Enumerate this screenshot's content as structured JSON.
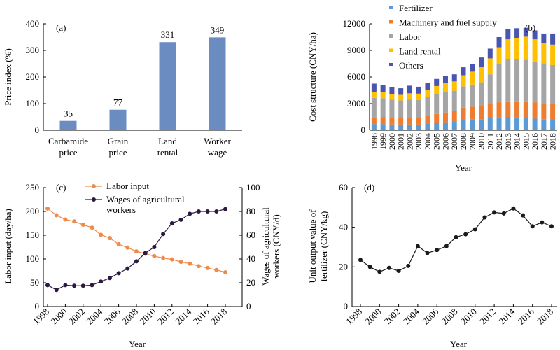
{
  "colors": {
    "bar_a": "#6a8cc0",
    "fertilizer": "#5b9bd5",
    "machinery": "#ed7d31",
    "labor": "#a5a5a5",
    "land": "#ffc000",
    "others": "#4a55b0",
    "labor_input": "#f08a4b",
    "wages": "#2b1a3d",
    "unit_output": "#1a1a1a"
  },
  "chart_data": [
    {
      "type": "bar",
      "panel_label": "(a)",
      "ylabel": "Price index (%)",
      "ylim": [
        0,
        400
      ],
      "yticks": [
        0,
        100,
        200,
        300,
        400
      ],
      "categories": [
        [
          "Carbamide",
          "price"
        ],
        [
          "Grain",
          "price"
        ],
        [
          "Land",
          "rental"
        ],
        [
          "Worker",
          "wage"
        ]
      ],
      "values": [
        35,
        77,
        331,
        349
      ],
      "data_labels": [
        "35",
        "77",
        "331",
        "349"
      ]
    },
    {
      "type": "bar",
      "stacked": true,
      "panel_label": "(b)",
      "ylabel": "Cost structure (CNY/ha)",
      "xlabel": "Year",
      "ylim": [
        0,
        12000
      ],
      "yticks": [
        0,
        3000,
        6000,
        9000,
        12000
      ],
      "categories": [
        "1998",
        "1999",
        "2000",
        "2001",
        "2002",
        "2003",
        "2004",
        "2005",
        "2006",
        "2007",
        "2008",
        "2009",
        "2010",
        "2011",
        "2012",
        "2013",
        "2014",
        "2015",
        "2016",
        "2017",
        "2018"
      ],
      "legend_position": "top-left",
      "series": [
        {
          "name": "Fertilizer",
          "values": [
            700,
            700,
            650,
            640,
            650,
            640,
            780,
            850,
            900,
            950,
            1150,
            1200,
            1200,
            1400,
            1450,
            1500,
            1450,
            1400,
            1300,
            1200,
            1150
          ]
        },
        {
          "name": "Machinery and fuel supply",
          "values": [
            750,
            760,
            740,
            730,
            760,
            780,
            870,
            980,
            1100,
            1200,
            1400,
            1450,
            1500,
            1600,
            1700,
            1750,
            1800,
            1850,
            1850,
            1850,
            1900
          ]
        },
        {
          "name": "Labor",
          "values": [
            2200,
            2150,
            2050,
            1980,
            2050,
            2000,
            2100,
            2200,
            2300,
            2300,
            2400,
            2500,
            2700,
            3300,
            4300,
            4800,
            4800,
            4700,
            4600,
            4500,
            4300
          ]
        },
        {
          "name": "Land rental",
          "values": [
            650,
            660,
            640,
            640,
            700,
            700,
            800,
            950,
            1000,
            1050,
            1250,
            1450,
            1700,
            1800,
            1900,
            2200,
            2300,
            2600,
            2500,
            2300,
            2300
          ]
        },
        {
          "name": "Others",
          "values": [
            950,
            830,
            760,
            740,
            860,
            780,
            800,
            800,
            800,
            800,
            900,
            900,
            1100,
            1100,
            1150,
            1150,
            1150,
            1000,
            1000,
            1050,
            1250
          ]
        }
      ]
    },
    {
      "type": "line",
      "panel_label": "(c)",
      "xlabel": "Year",
      "ylabel_left": "Labor input (day/ha)",
      "ylabel_right": [
        "Wages of agricultural",
        "workers (CNY/d)"
      ],
      "ylim_left": [
        0,
        250
      ],
      "ylim_right": [
        0,
        100
      ],
      "yticks_left": [
        0,
        50,
        100,
        150,
        200,
        250
      ],
      "yticks_right": [
        0,
        20,
        40,
        60,
        80,
        100
      ],
      "xticks": [
        1998,
        2000,
        2002,
        2004,
        2006,
        2008,
        2010,
        2012,
        2014,
        2016,
        2018
      ],
      "x": [
        1998,
        1999,
        2000,
        2001,
        2002,
        2003,
        2004,
        2005,
        2006,
        2007,
        2008,
        2009,
        2010,
        2011,
        2012,
        2013,
        2014,
        2015,
        2016,
        2017,
        2018
      ],
      "series": [
        {
          "name": "Labor input",
          "axis": "left",
          "values": [
            206,
            192,
            183,
            179,
            172,
            166,
            151,
            144,
            131,
            124,
            116,
            111,
            106,
            102,
            99,
            94,
            90,
            85,
            81,
            77,
            72
          ]
        },
        {
          "name": "Wages of agricultural workers",
          "axis": "right",
          "values": [
            18,
            14,
            18,
            17.5,
            17.5,
            18,
            21,
            24,
            28,
            32,
            38,
            45,
            50,
            61,
            70,
            73,
            78,
            80,
            80,
            80,
            82
          ]
        }
      ],
      "legend_labels": [
        "Labor input",
        "Wages of agricultural",
        "workers"
      ]
    },
    {
      "type": "line",
      "panel_label": "(d)",
      "xlabel": "Year",
      "ylabel": [
        "Unit output value of",
        "fertilizer (CNY/kg)"
      ],
      "ylim": [
        0,
        60
      ],
      "yticks": [
        0,
        20,
        40,
        60
      ],
      "xticks": [
        1998,
        2000,
        2002,
        2004,
        2006,
        2008,
        2010,
        2012,
        2014,
        2016,
        2018
      ],
      "x": [
        1998,
        1999,
        2000,
        2001,
        2002,
        2003,
        2004,
        2005,
        2006,
        2007,
        2008,
        2009,
        2010,
        2011,
        2012,
        2013,
        2014,
        2015,
        2016,
        2017,
        2018
      ],
      "series": [
        {
          "name": "Unit output value of fertilizer",
          "values": [
            23.5,
            20,
            17.5,
            19.5,
            18,
            20.5,
            30.5,
            27,
            28.5,
            30.5,
            35,
            36.5,
            39,
            45,
            47.5,
            47,
            49.5,
            46,
            40.5,
            42.5,
            40.5
          ]
        }
      ]
    }
  ]
}
